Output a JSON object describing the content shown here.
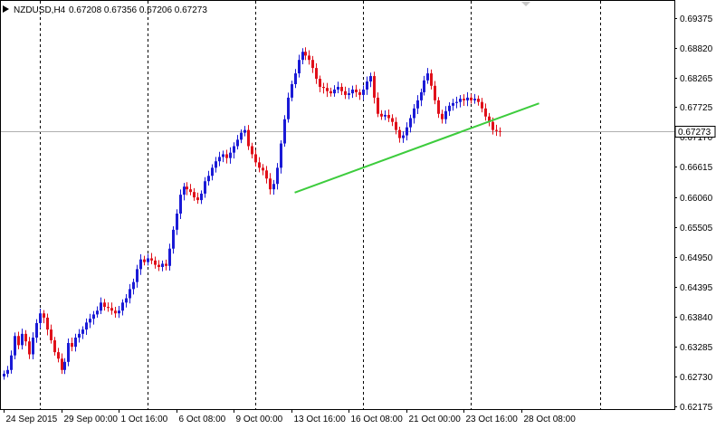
{
  "header": {
    "symbol_label": "NZDUSD,H4",
    "ohlc_text": "0.67208 0.67356 0.67206 0.67273"
  },
  "colors": {
    "bull": "#1a1ad6",
    "bear": "#e0101a",
    "trendline": "#3dcc3d",
    "grid": "#000000",
    "price_line": "#b0b0b0",
    "price_tag_bg": "#ffffff"
  },
  "chart_data": {
    "type": "candlestick",
    "symbol": "NZDUSD",
    "timeframe": "H4",
    "ylim": [
      0.6202,
      0.6965
    ],
    "y_ticks": [
      "0.69375",
      "0.68820",
      "0.68265",
      "0.67725",
      "0.67170",
      "0.66615",
      "0.66060",
      "0.65505",
      "0.64950",
      "0.64395",
      "0.63840",
      "0.63285",
      "0.62730",
      "0.62175"
    ],
    "x_tick_labels": [
      "24 Sep 2015",
      "29 Sep 00:00",
      "1 Oct 16:00",
      "6 Oct 08:00",
      "9 Oct 00:00",
      "13 Oct 16:00",
      "16 Oct 08:00",
      "21 Oct 00:00",
      "23 Oct 16:00",
      "28 Oct 08:00"
    ],
    "x_tick_index": [
      0,
      16,
      32,
      48,
      64,
      80,
      96,
      112,
      128,
      144
    ],
    "grid_index": [
      10,
      40,
      70,
      100,
      130,
      166
    ],
    "current_price": "0.67273",
    "closes": [
      0.6278,
      0.6285,
      0.6312,
      0.6348,
      0.6331,
      0.6352,
      0.6338,
      0.6314,
      0.6345,
      0.6372,
      0.639,
      0.6382,
      0.636,
      0.634,
      0.6318,
      0.6306,
      0.6285,
      0.63,
      0.6335,
      0.6328,
      0.6345,
      0.6352,
      0.636,
      0.6373,
      0.638,
      0.6388,
      0.6395,
      0.641,
      0.6402,
      0.64,
      0.6395,
      0.639,
      0.6395,
      0.641,
      0.6418,
      0.6435,
      0.6448,
      0.6472,
      0.649,
      0.6485,
      0.6492,
      0.6488,
      0.648,
      0.6476,
      0.6482,
      0.6478,
      0.651,
      0.6545,
      0.6575,
      0.661,
      0.6625,
      0.662,
      0.6615,
      0.6605,
      0.66,
      0.6612,
      0.6635,
      0.6645,
      0.666,
      0.6672,
      0.668,
      0.6685,
      0.6678,
      0.6688,
      0.67,
      0.6712,
      0.6725,
      0.673,
      0.67,
      0.6685,
      0.667,
      0.666,
      0.6655,
      0.664,
      0.662,
      0.663,
      0.666,
      0.6705,
      0.675,
      0.679,
      0.6815,
      0.6835,
      0.686,
      0.6875,
      0.6868,
      0.686,
      0.6845,
      0.6825,
      0.681,
      0.6808,
      0.6802,
      0.6798,
      0.6805,
      0.681,
      0.6802,
      0.6795,
      0.6798,
      0.6805,
      0.68,
      0.6795,
      0.6805,
      0.682,
      0.683,
      0.679,
      0.676,
      0.6755,
      0.6758,
      0.6752,
      0.6745,
      0.673,
      0.6715,
      0.672,
      0.6735,
      0.6752,
      0.677,
      0.6785,
      0.68,
      0.6822,
      0.6835,
      0.6812,
      0.6785,
      0.676,
      0.675,
      0.6765,
      0.6775,
      0.678,
      0.6782,
      0.6788,
      0.6785,
      0.679,
      0.6785,
      0.6788,
      0.6782,
      0.677,
      0.6755,
      0.6745,
      0.673,
      0.6728,
      0.6727
    ],
    "trendline": {
      "from": {
        "index": 81,
        "price": 0.6614
      },
      "to": {
        "index": 149,
        "price": 0.67795
      }
    }
  }
}
